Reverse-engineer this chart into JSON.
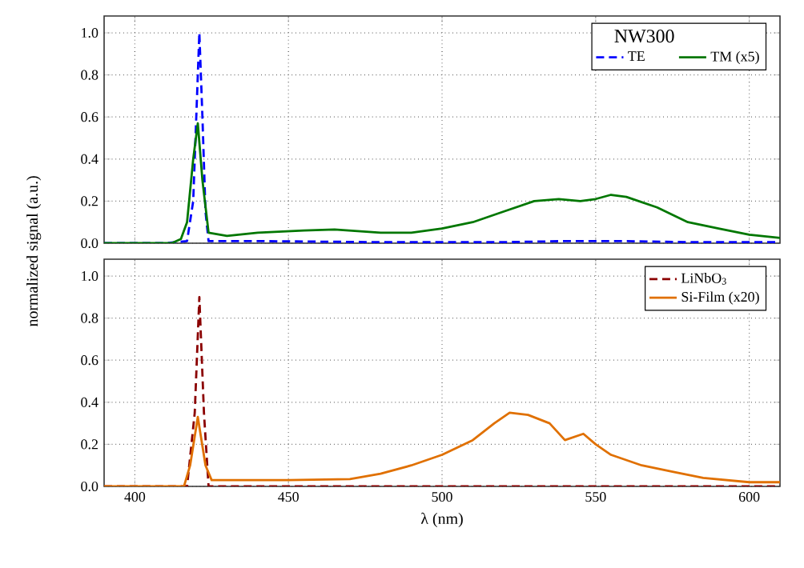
{
  "chart_data": [
    {
      "type": "line",
      "xlim": [
        390,
        610
      ],
      "ylim": [
        0,
        1.08
      ],
      "xticks": [
        400,
        450,
        500,
        550,
        600
      ],
      "yticks": [
        {
          "value": 0,
          "label": "0.0"
        },
        {
          "value": 0.2,
          "label": "0.2"
        },
        {
          "value": 0.4,
          "label": "0.4"
        },
        {
          "value": 0.6,
          "label": "0.6"
        },
        {
          "value": 0.8,
          "label": "0.8"
        },
        {
          "value": 1.0,
          "label": "1.0"
        }
      ],
      "tick_labels": "y",
      "grid": true,
      "legend": "top right",
      "legend_title": "NW300",
      "ylabel": "normalized signal (a.u.)",
      "series": [
        {
          "name": "TE",
          "color": "#0000ff",
          "line_style": "dashed",
          "x": [
            390,
            410,
            417,
            419,
            420,
            421,
            422,
            423,
            424,
            440,
            480,
            520,
            540,
            560,
            580,
            610
          ],
          "values": [
            0,
            0,
            0.01,
            0.2,
            0.6,
            1.0,
            0.6,
            0.15,
            0.01,
            0.01,
            0.005,
            0.005,
            0.01,
            0.01,
            0.005,
            0.005
          ]
        },
        {
          "name": "TM (x5)",
          "color": "#007700",
          "line_style": "solid",
          "x": [
            390,
            412,
            415,
            417,
            419,
            420.5,
            422,
            424,
            430,
            440,
            455,
            465,
            480,
            490,
            500,
            510,
            520,
            530,
            538,
            545,
            550,
            555,
            560,
            570,
            580,
            590,
            600,
            610
          ],
          "values": [
            0,
            0,
            0.02,
            0.1,
            0.4,
            0.57,
            0.3,
            0.05,
            0.035,
            0.05,
            0.06,
            0.065,
            0.05,
            0.05,
            0.07,
            0.1,
            0.15,
            0.2,
            0.21,
            0.2,
            0.21,
            0.23,
            0.22,
            0.17,
            0.1,
            0.07,
            0.04,
            0.025
          ]
        }
      ]
    },
    {
      "type": "line",
      "xlim": [
        390,
        610
      ],
      "ylim": [
        0,
        1.08
      ],
      "xticks": [
        400,
        450,
        500,
        550,
        600
      ],
      "yticks": [
        {
          "value": 0,
          "label": "0.0"
        },
        {
          "value": 0.2,
          "label": "0.2"
        },
        {
          "value": 0.4,
          "label": "0.4"
        },
        {
          "value": 0.6,
          "label": "0.6"
        },
        {
          "value": 0.8,
          "label": "0.8"
        },
        {
          "value": 1.0,
          "label": "1.0"
        }
      ],
      "grid": true,
      "legend": "top right",
      "xlabel": "λ (nm)",
      "series": [
        {
          "name": "LiNbO$_{3}$",
          "color": "#8b0000",
          "line_style": "dashed",
          "x": [
            390,
            417,
            419.5,
            421,
            422.5,
            424,
            610
          ],
          "values": [
            0,
            0,
            0.35,
            0.9,
            0.35,
            0,
            0
          ]
        },
        {
          "name": "Si-Film (x20)",
          "color": "#e07000",
          "line_style": "solid",
          "x": [
            390,
            416,
            418,
            420.5,
            423,
            425,
            450,
            470,
            480,
            490,
            500,
            510,
            517,
            522,
            528,
            535,
            540,
            546,
            550,
            555,
            565,
            575,
            585,
            600,
            610
          ],
          "values": [
            0,
            0,
            0.1,
            0.33,
            0.1,
            0.03,
            0.03,
            0.035,
            0.06,
            0.1,
            0.15,
            0.22,
            0.3,
            0.35,
            0.34,
            0.3,
            0.22,
            0.25,
            0.2,
            0.15,
            0.1,
            0.07,
            0.04,
            0.02,
            0.02
          ]
        }
      ]
    }
  ]
}
